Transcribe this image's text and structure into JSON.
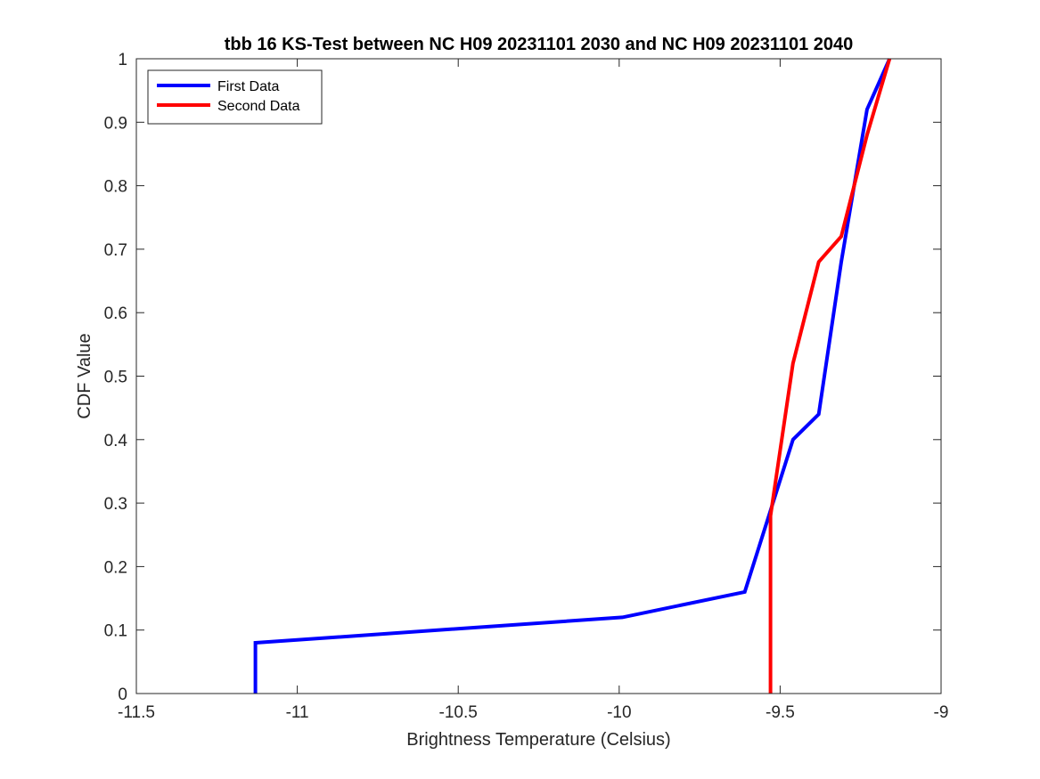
{
  "chart_data": {
    "type": "line",
    "title": "tbb 16 KS-Test between NC H09 20231101 2030 and NC H09 20231101 2040",
    "xlabel": "Brightness Temperature (Celsius)",
    "ylabel": "CDF Value",
    "xlim": [
      -11.5,
      -9
    ],
    "ylim": [
      0,
      1
    ],
    "xticks": [
      -11.5,
      -11,
      -10.5,
      -10,
      -9.5,
      -9
    ],
    "xtick_labels": [
      "-11.5",
      "-11",
      "-10.5",
      "-10",
      "-9.5",
      "-9"
    ],
    "yticks": [
      0,
      0.1,
      0.2,
      0.3,
      0.4,
      0.5,
      0.6,
      0.7,
      0.8,
      0.9,
      1
    ],
    "ytick_labels": [
      "0",
      "0.1",
      "0.2",
      "0.3",
      "0.4",
      "0.5",
      "0.6",
      "0.7",
      "0.8",
      "0.9",
      "1"
    ],
    "grid": false,
    "legend_position": "top-left",
    "series": [
      {
        "name": "First Data",
        "color": "#0000ff",
        "x": [
          -11.13,
          -11.13,
          -9.99,
          -9.61,
          -9.46,
          -9.38,
          -9.31,
          -9.23,
          -9.16
        ],
        "y": [
          0,
          0.08,
          0.12,
          0.16,
          0.4,
          0.44,
          0.68,
          0.92,
          1.0
        ]
      },
      {
        "name": "Second Data",
        "color": "#ff0000",
        "x": [
          -9.53,
          -9.53,
          -9.46,
          -9.38,
          -9.31,
          -9.23,
          -9.16
        ],
        "y": [
          0,
          0.28,
          0.52,
          0.68,
          0.72,
          0.88,
          1.0
        ]
      }
    ]
  }
}
